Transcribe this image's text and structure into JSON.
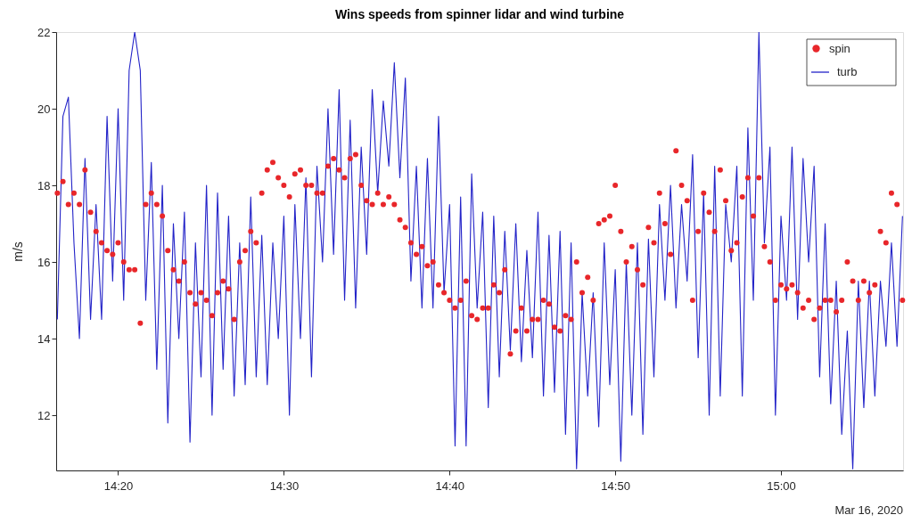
{
  "chart_data": {
    "type": "line",
    "title": "Wins speeds from spinner lidar and wind turbine",
    "ylabel": "m/s",
    "x": [
      14.2722,
      14.2778,
      14.2833,
      14.2889,
      14.2944,
      14.3,
      14.3056,
      14.3111,
      14.3167,
      14.3222,
      14.3278,
      14.3333,
      14.3389,
      14.3444,
      14.35,
      14.3556,
      14.3611,
      14.3667,
      14.3722,
      14.3778,
      14.3833,
      14.3889,
      14.3944,
      14.4,
      14.4056,
      14.4111,
      14.4167,
      14.4222,
      14.4278,
      14.4333,
      14.4389,
      14.4444,
      14.45,
      14.4556,
      14.4611,
      14.4667,
      14.4722,
      14.4778,
      14.4833,
      14.4889,
      14.4944,
      14.5,
      14.5056,
      14.5111,
      14.5167,
      14.5222,
      14.5278,
      14.5333,
      14.5389,
      14.5444,
      14.55,
      14.5556,
      14.5611,
      14.5667,
      14.5722,
      14.5778,
      14.5833,
      14.5889,
      14.5944,
      14.6,
      14.6056,
      14.6111,
      14.6167,
      14.6222,
      14.6278,
      14.6333,
      14.6389,
      14.6444,
      14.65,
      14.6556,
      14.6611,
      14.6667,
      14.6722,
      14.6778,
      14.6833,
      14.6889,
      14.6944,
      14.7,
      14.7056,
      14.7111,
      14.7167,
      14.7222,
      14.7278,
      14.7333,
      14.7389,
      14.7444,
      14.75,
      14.7556,
      14.7611,
      14.7667,
      14.7722,
      14.7778,
      14.7833,
      14.7889,
      14.7944,
      14.8,
      14.8056,
      14.8111,
      14.8167,
      14.8222,
      14.8278,
      14.8333,
      14.8389,
      14.8444,
      14.85,
      14.8556,
      14.8611,
      14.8667,
      14.8722,
      14.8778,
      14.8833,
      14.8889,
      14.8944,
      14.9,
      14.9056,
      14.9111,
      14.9167,
      14.9222,
      14.9278,
      14.9333,
      14.9389,
      14.9444,
      14.95,
      14.9556,
      14.9611,
      14.9667,
      14.9722,
      14.9778,
      14.9833,
      14.9889,
      14.9944,
      15.0,
      15.0056,
      15.0111,
      15.0167,
      15.0222,
      15.0278,
      15.0333,
      15.0389,
      15.0444,
      15.05,
      15.0556,
      15.0611,
      15.0667,
      15.0722,
      15.0778,
      15.0833,
      15.0889,
      15.0944,
      15.1,
      15.1056,
      15.1111,
      15.1167,
      15.1222
    ],
    "series": [
      {
        "name": "spin",
        "type": "scatter",
        "color": "#e8262a",
        "values": [
          17.8,
          18.1,
          17.5,
          17.8,
          17.5,
          18.4,
          17.3,
          16.8,
          16.5,
          16.3,
          16.2,
          16.5,
          16,
          15.8,
          15.8,
          14.4,
          17.5,
          17.8,
          17.5,
          17.2,
          16.3,
          15.8,
          15.5,
          16.0,
          15.2,
          14.9,
          15.2,
          15.0,
          14.6,
          15.2,
          15.5,
          15.3,
          14.5,
          16.0,
          16.3,
          16.8,
          16.5,
          17.8,
          18.4,
          18.6,
          18.2,
          18.0,
          17.7,
          18.3,
          18.4,
          18.0,
          18.0,
          17.8,
          17.8,
          18.5,
          18.7,
          18.4,
          18.2,
          18.7,
          18.8,
          18.0,
          17.6,
          17.5,
          17.8,
          17.5,
          17.7,
          17.5,
          17.1,
          16.9,
          16.5,
          16.2,
          16.4,
          15.9,
          16.0,
          15.4,
          15.2,
          15.0,
          14.8,
          15.0,
          15.5,
          14.6,
          14.5,
          14.8,
          14.8,
          15.4,
          15.2,
          15.8,
          13.6,
          14.2,
          14.8,
          14.2,
          14.5,
          14.5,
          15.0,
          14.9,
          14.3,
          14.2,
          14.6,
          14.5,
          16.0,
          15.2,
          15.6,
          15.0,
          17.0,
          17.1,
          17.2,
          18.0,
          16.8,
          16.0,
          16.4,
          15.8,
          15.4,
          16.9,
          16.5,
          17.8,
          17.0,
          16.2,
          18.9,
          18.0,
          17.6,
          15.0,
          16.8,
          17.8,
          17.3,
          16.8,
          18.4,
          17.6,
          16.3,
          16.5,
          17.7,
          18.2,
          17.2,
          18.2,
          16.4,
          16.0,
          15.0,
          15.4,
          15.3,
          15.4,
          15.2,
          14.8,
          15.0,
          14.5,
          14.8,
          15.0,
          15.0,
          14.7,
          15.0,
          16.0,
          15.5,
          15.0,
          15.5,
          15.2,
          15.4,
          16.8,
          16.5,
          17.8,
          17.5,
          15.0
        ]
      },
      {
        "name": "turb",
        "type": "line",
        "color": "#2323c8",
        "values": [
          14.5,
          19.8,
          20.3,
          16.5,
          14.0,
          18.7,
          14.5,
          17.5,
          14.5,
          19.8,
          15.5,
          20,
          15,
          21,
          22,
          21,
          15,
          18.6,
          13.2,
          18,
          11.8,
          17,
          14,
          17.3,
          11.3,
          16.5,
          13,
          18,
          12,
          17.8,
          13.2,
          17.2,
          12.5,
          16.5,
          12.8,
          17.7,
          13,
          16.7,
          12.8,
          16.5,
          14,
          17.2,
          12,
          17.5,
          14,
          18.2,
          13,
          18.5,
          16,
          20,
          16.2,
          20.5,
          15,
          19.7,
          14.8,
          19,
          16.2,
          20.5,
          17.8,
          20.2,
          18.5,
          21.2,
          18.2,
          20.8,
          15.5,
          18.5,
          14.8,
          18.7,
          14.8,
          19.8,
          15.2,
          17.5,
          11.2,
          17.7,
          11.2,
          18.3,
          14.8,
          17.3,
          12.2,
          17.2,
          13,
          16.8,
          13.7,
          17,
          13.4,
          16.3,
          13.5,
          17.3,
          12.5,
          16.7,
          12.6,
          16.8,
          11.5,
          16.5,
          10.6,
          15.2,
          12.5,
          15.2,
          11.7,
          16.5,
          12.8,
          15.8,
          10.8,
          16,
          12,
          16.5,
          11.5,
          16.6,
          13,
          17.5,
          15,
          18,
          14.8,
          17.5,
          15.5,
          18.8,
          13.5,
          17.8,
          12,
          18.5,
          12.5,
          17.5,
          16,
          18.5,
          12.5,
          19.5,
          15,
          22,
          16.5,
          19,
          12,
          17.2,
          15,
          19,
          14.5,
          18.7,
          16,
          18.5,
          13,
          17,
          12.3,
          15.5,
          11.5,
          14.2,
          10.6,
          15.5,
          12.2,
          15.5,
          12.5,
          15.5,
          13.8,
          16.5,
          13.8,
          17.2
        ]
      }
    ],
    "xlim": [
      14.271,
      15.1228
    ],
    "xticks": [
      {
        "value": 14.3333,
        "label": "14:20"
      },
      {
        "value": 14.5,
        "label": "14:30"
      },
      {
        "value": 14.6667,
        "label": "14:40"
      },
      {
        "value": 14.8333,
        "label": "14:50"
      },
      {
        "value": 15.0,
        "label": "15:00"
      }
    ],
    "ylim": [
      10.56,
      22
    ],
    "yticks": [
      12,
      14,
      16,
      18,
      20,
      22
    ],
    "grid": false,
    "legend": "top right",
    "annotations": [
      "Mar 16, 2020"
    ]
  }
}
